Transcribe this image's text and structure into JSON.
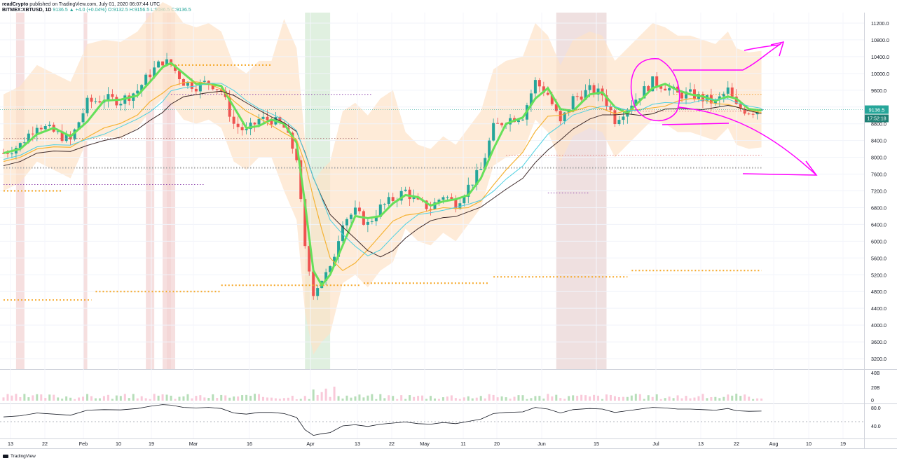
{
  "header": {
    "author": "readCrypto",
    "published": "published on TradingView.com, July 01, 2020 06:07:44 UTC",
    "symbol": "BITMEX:XBTUSD, 1D",
    "last": "9136.5",
    "change": "▲ +4.0 (+0.04%)",
    "open": "O:9132.5",
    "high": "H:9156.5",
    "low": "L:9086.5",
    "close": "C:9136.5"
  },
  "price_badge": {
    "price": "9136.5",
    "countdown": "17:52:18"
  },
  "footer": {
    "logo_text": "TradingView"
  },
  "colors": {
    "up": "#26a69a",
    "down": "#ef5350",
    "ema_fast_up": "#66e05a",
    "ema_fast_down": "#ef5350",
    "ema_mid": "#f5b335",
    "ma_slow": "#3e2a2a",
    "cyan_line": "#4dd0e1",
    "bb_fill": "#fde2c7",
    "annotation": "#ff00ff",
    "badge_bg": "#26a69a"
  },
  "chart_data": {
    "type": "candlestick",
    "symbol": "BITMEX:XBTUSD",
    "interval": "1D",
    "y_axis": {
      "ticks": [
        11200,
        10800,
        10400,
        10000,
        9600,
        9200,
        8800,
        8400,
        8000,
        7600,
        7200,
        6800,
        6400,
        6000,
        5600,
        5200,
        4800,
        4400,
        4000,
        3600,
        3200
      ],
      "tick_labels": [
        "11200.0",
        "10800.0",
        "10400.0",
        "10000.0",
        "9600.0",
        "9200.0",
        "8800.0",
        "8400.0",
        "8000.0",
        "7600.0",
        "7200.0",
        "6800.0",
        "6400.0",
        "6000.0",
        "5600.0",
        "5200.0",
        "4800.0",
        "4400.0",
        "4000.0",
        "3600.0",
        "3200.0"
      ],
      "range": [
        2950,
        11450
      ]
    },
    "x_axis": {
      "labels": [
        "13",
        "22",
        "Feb",
        "10",
        "19",
        "Mar",
        "16",
        "Apr",
        "13",
        "22",
        "May",
        "11",
        "20",
        "Jun",
        "15",
        "Jul",
        "13",
        "22",
        "Aug",
        "10",
        "19"
      ],
      "range_days": [
        0,
        205
      ]
    },
    "candles_anchor_close": [
      [
        0,
        8100
      ],
      [
        4,
        8300
      ],
      [
        8,
        8800
      ],
      [
        12,
        8600
      ],
      [
        16,
        8400
      ],
      [
        20,
        9300
      ],
      [
        24,
        9400
      ],
      [
        28,
        9350
      ],
      [
        32,
        9600
      ],
      [
        35,
        10000
      ],
      [
        38,
        10300
      ],
      [
        40,
        10200
      ],
      [
        43,
        9800
      ],
      [
        46,
        9700
      ],
      [
        49,
        9800
      ],
      [
        52,
        9600
      ],
      [
        55,
        8800
      ],
      [
        58,
        8600
      ],
      [
        61,
        8900
      ],
      [
        64,
        8900
      ],
      [
        67,
        8700
      ],
      [
        70,
        8000
      ],
      [
        72,
        5800
      ],
      [
        74,
        4800
      ],
      [
        76,
        5100
      ],
      [
        78,
        5300
      ],
      [
        81,
        6500
      ],
      [
        84,
        6700
      ],
      [
        87,
        6400
      ],
      [
        90,
        6800
      ],
      [
        93,
        7000
      ],
      [
        96,
        7200
      ],
      [
        99,
        6900
      ],
      [
        102,
        6800
      ],
      [
        105,
        7100
      ],
      [
        108,
        6900
      ],
      [
        111,
        7300
      ],
      [
        114,
        7700
      ],
      [
        117,
        8700
      ],
      [
        120,
        8900
      ],
      [
        124,
        9000
      ],
      [
        127,
        9800
      ],
      [
        130,
        9500
      ],
      [
        133,
        8800
      ],
      [
        136,
        9400
      ],
      [
        140,
        9600
      ],
      [
        143,
        9500
      ],
      [
        146,
        8900
      ],
      [
        149,
        9200
      ],
      [
        152,
        9500
      ],
      [
        155,
        9800
      ],
      [
        158,
        9700
      ],
      [
        161,
        9500
      ],
      [
        164,
        9500
      ],
      [
        167,
        9400
      ],
      [
        170,
        9300
      ],
      [
        173,
        9600
      ],
      [
        175,
        9200
      ],
      [
        178,
        9100
      ],
      [
        181,
        9137
      ]
    ],
    "current_price": 9136.5,
    "oscillator": {
      "ticks": [
        "80.0",
        "40.0"
      ],
      "midline": 50
    },
    "volume_panel": {
      "ticks": [
        "40B",
        "20B",
        "0"
      ]
    },
    "annotations": [
      "circle around current price",
      "upward arrow",
      "downward arrow"
    ]
  }
}
